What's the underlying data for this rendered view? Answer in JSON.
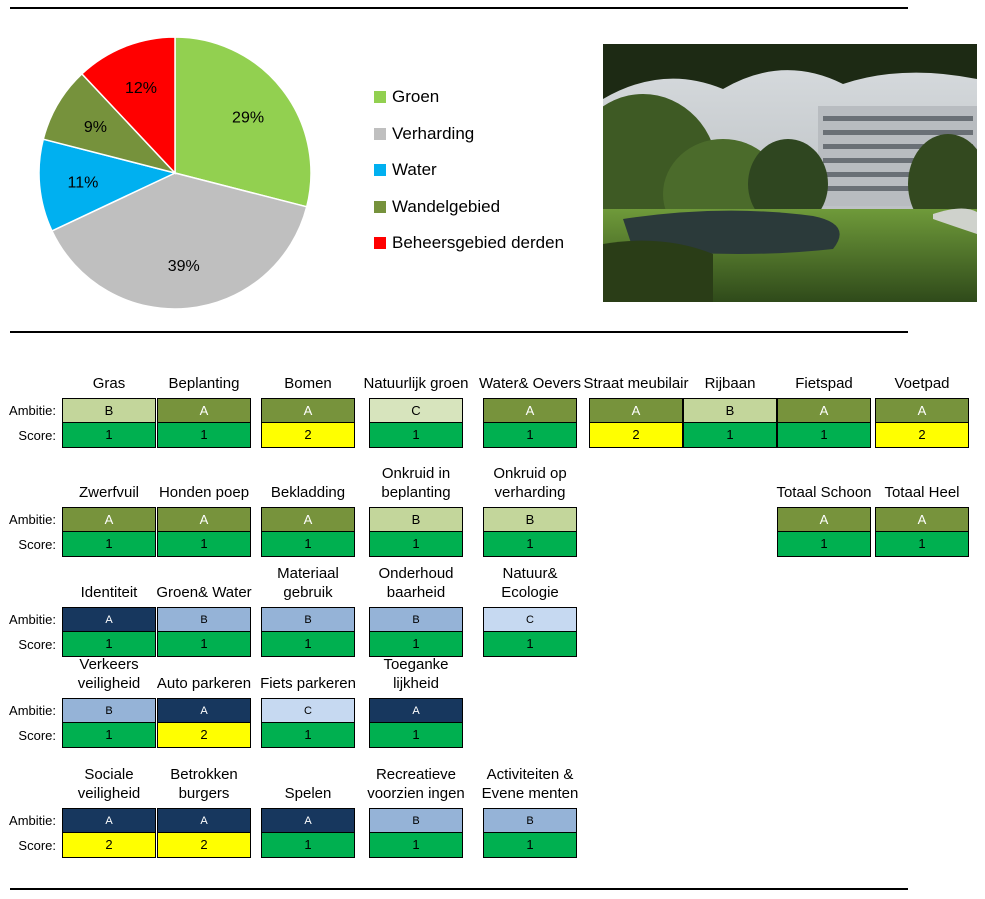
{
  "chart_data": {
    "type": "pie",
    "slices": [
      {
        "label": "Groen",
        "value": 29,
        "color": "#92D050"
      },
      {
        "label": "Verharding",
        "value": 39,
        "color": "#BFBFBF"
      },
      {
        "label": "Water",
        "value": 11,
        "color": "#00B0F0"
      },
      {
        "label": "Wandelgebied",
        "value": 9,
        "color": "#76923C"
      },
      {
        "label": "Beheersgebied derden",
        "value": 12,
        "color": "#FF0000"
      }
    ],
    "legend_position": "right",
    "data_labels": [
      "29%",
      "39%",
      "11%",
      "9%",
      "12%"
    ]
  },
  "labels": {
    "ambitie": "Ambitie:",
    "score": "Score:"
  },
  "colors": {
    "A_green": "#77933C",
    "B_green": "#C3D69B",
    "C_green": "#D7E4BD",
    "A_navy": "#17375E",
    "B_blue": "#95B3D7",
    "C_blue": "#C6D9F1",
    "score_1": "#00B050",
    "score_2": "#FFFF00"
  },
  "photo": {
    "icon": "park-photo-icon"
  },
  "groups": [
    {
      "cells": [
        {
          "title": "Gras",
          "ambitie": "B",
          "score": "1",
          "amb_color": "#C3D69B"
        },
        {
          "title": "Beplanting",
          "ambitie": "A",
          "score": "1",
          "amb_color": "#77933C"
        },
        {
          "title": "Bomen",
          "ambitie": "A",
          "score": "2",
          "amb_color": "#77933C"
        },
        {
          "title": "Natuurlijk groen",
          "ambitie": "C",
          "score": "1",
          "amb_color": "#D7E4BD"
        },
        {
          "title": "Water& Oevers",
          "ambitie": "A",
          "score": "1",
          "amb_color": "#77933C"
        },
        {
          "title": "Straat meubilair",
          "ambitie": "A",
          "score": "2",
          "amb_color": "#77933C"
        },
        {
          "title": "Rijbaan",
          "ambitie": "B",
          "score": "1",
          "amb_color": "#C3D69B"
        },
        {
          "title": "Fietspad",
          "ambitie": "A",
          "score": "1",
          "amb_color": "#77933C"
        },
        {
          "title": "Voetpad",
          "ambitie": "A",
          "score": "2",
          "amb_color": "#77933C"
        }
      ]
    },
    {
      "cells": [
        {
          "title": "Zwerfvuil",
          "ambitie": "A",
          "score": "1",
          "amb_color": "#77933C"
        },
        {
          "title": "Honden poep",
          "ambitie": "A",
          "score": "1",
          "amb_color": "#77933C"
        },
        {
          "title": "Bekladding",
          "ambitie": "A",
          "score": "1",
          "amb_color": "#77933C"
        },
        {
          "title": "Onkruid in beplanting",
          "ambitie": "B",
          "score": "1",
          "amb_color": "#C3D69B"
        },
        {
          "title": "Onkruid op verharding",
          "ambitie": "B",
          "score": "1",
          "amb_color": "#C3D69B"
        },
        {
          "title": "Totaal Schoon",
          "ambitie": "A",
          "score": "1",
          "amb_color": "#77933C"
        },
        {
          "title": "Totaal Heel",
          "ambitie": "A",
          "score": "1",
          "amb_color": "#77933C"
        }
      ]
    },
    {
      "cells": [
        {
          "title": "Identiteit",
          "ambitie": "A",
          "score": "1",
          "amb_color": "#17375E"
        },
        {
          "title": "Groen& Water",
          "ambitie": "B",
          "score": "1",
          "amb_color": "#95B3D7"
        },
        {
          "title": "Materiaal gebruik",
          "ambitie": "B",
          "score": "1",
          "amb_color": "#95B3D7"
        },
        {
          "title": "Onderhoud baarheid",
          "ambitie": "B",
          "score": "1",
          "amb_color": "#95B3D7"
        },
        {
          "title": "Natuur& Ecologie",
          "ambitie": "C",
          "score": "1",
          "amb_color": "#C6D9F1"
        }
      ]
    },
    {
      "cells": [
        {
          "title": "Verkeers veiligheid",
          "ambitie": "B",
          "score": "1",
          "amb_color": "#95B3D7"
        },
        {
          "title": "Auto parkeren",
          "ambitie": "A",
          "score": "2",
          "amb_color": "#17375E"
        },
        {
          "title": "Fiets parkeren",
          "ambitie": "C",
          "score": "1",
          "amb_color": "#C6D9F1"
        },
        {
          "title": "Toeganke lijkheid",
          "ambitie": "A",
          "score": "1",
          "amb_color": "#17375E"
        }
      ]
    },
    {
      "cells": [
        {
          "title": "Sociale veiligheid",
          "ambitie": "A",
          "score": "2",
          "amb_color": "#17375E"
        },
        {
          "title": "Betrokken burgers",
          "ambitie": "A",
          "score": "2",
          "amb_color": "#17375E"
        },
        {
          "title": "Spelen",
          "ambitie": "A",
          "score": "1",
          "amb_color": "#17375E"
        },
        {
          "title": "Recreatieve voorzien ingen",
          "ambitie": "B",
          "score": "1",
          "amb_color": "#95B3D7"
        },
        {
          "title": "Activiteiten & Evene menten",
          "ambitie": "B",
          "score": "1",
          "amb_color": "#95B3D7"
        }
      ]
    }
  ]
}
